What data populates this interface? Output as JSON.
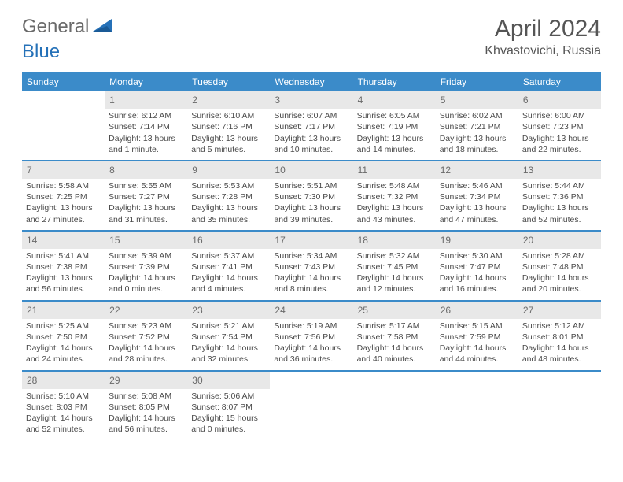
{
  "logo": {
    "text1": "General",
    "text2": "Blue"
  },
  "title": "April 2024",
  "location": "Khvastovichi, Russia",
  "dayNames": [
    "Sunday",
    "Monday",
    "Tuesday",
    "Wednesday",
    "Thursday",
    "Friday",
    "Saturday"
  ],
  "colors": {
    "headerBg": "#3b8bc9",
    "headerText": "#ffffff",
    "cellHeadBg": "#e8e8e8",
    "cellText": "#4a4a4a",
    "logoBlue": "#2571b8",
    "logoGray": "#6a6a6a"
  },
  "weeks": [
    [
      {
        "day": "",
        "sunrise": "",
        "sunset": "",
        "daylight": ""
      },
      {
        "day": "1",
        "sunrise": "Sunrise: 6:12 AM",
        "sunset": "Sunset: 7:14 PM",
        "daylight": "Daylight: 13 hours and 1 minute."
      },
      {
        "day": "2",
        "sunrise": "Sunrise: 6:10 AM",
        "sunset": "Sunset: 7:16 PM",
        "daylight": "Daylight: 13 hours and 5 minutes."
      },
      {
        "day": "3",
        "sunrise": "Sunrise: 6:07 AM",
        "sunset": "Sunset: 7:17 PM",
        "daylight": "Daylight: 13 hours and 10 minutes."
      },
      {
        "day": "4",
        "sunrise": "Sunrise: 6:05 AM",
        "sunset": "Sunset: 7:19 PM",
        "daylight": "Daylight: 13 hours and 14 minutes."
      },
      {
        "day": "5",
        "sunrise": "Sunrise: 6:02 AM",
        "sunset": "Sunset: 7:21 PM",
        "daylight": "Daylight: 13 hours and 18 minutes."
      },
      {
        "day": "6",
        "sunrise": "Sunrise: 6:00 AM",
        "sunset": "Sunset: 7:23 PM",
        "daylight": "Daylight: 13 hours and 22 minutes."
      }
    ],
    [
      {
        "day": "7",
        "sunrise": "Sunrise: 5:58 AM",
        "sunset": "Sunset: 7:25 PM",
        "daylight": "Daylight: 13 hours and 27 minutes."
      },
      {
        "day": "8",
        "sunrise": "Sunrise: 5:55 AM",
        "sunset": "Sunset: 7:27 PM",
        "daylight": "Daylight: 13 hours and 31 minutes."
      },
      {
        "day": "9",
        "sunrise": "Sunrise: 5:53 AM",
        "sunset": "Sunset: 7:28 PM",
        "daylight": "Daylight: 13 hours and 35 minutes."
      },
      {
        "day": "10",
        "sunrise": "Sunrise: 5:51 AM",
        "sunset": "Sunset: 7:30 PM",
        "daylight": "Daylight: 13 hours and 39 minutes."
      },
      {
        "day": "11",
        "sunrise": "Sunrise: 5:48 AM",
        "sunset": "Sunset: 7:32 PM",
        "daylight": "Daylight: 13 hours and 43 minutes."
      },
      {
        "day": "12",
        "sunrise": "Sunrise: 5:46 AM",
        "sunset": "Sunset: 7:34 PM",
        "daylight": "Daylight: 13 hours and 47 minutes."
      },
      {
        "day": "13",
        "sunrise": "Sunrise: 5:44 AM",
        "sunset": "Sunset: 7:36 PM",
        "daylight": "Daylight: 13 hours and 52 minutes."
      }
    ],
    [
      {
        "day": "14",
        "sunrise": "Sunrise: 5:41 AM",
        "sunset": "Sunset: 7:38 PM",
        "daylight": "Daylight: 13 hours and 56 minutes."
      },
      {
        "day": "15",
        "sunrise": "Sunrise: 5:39 AM",
        "sunset": "Sunset: 7:39 PM",
        "daylight": "Daylight: 14 hours and 0 minutes."
      },
      {
        "day": "16",
        "sunrise": "Sunrise: 5:37 AM",
        "sunset": "Sunset: 7:41 PM",
        "daylight": "Daylight: 14 hours and 4 minutes."
      },
      {
        "day": "17",
        "sunrise": "Sunrise: 5:34 AM",
        "sunset": "Sunset: 7:43 PM",
        "daylight": "Daylight: 14 hours and 8 minutes."
      },
      {
        "day": "18",
        "sunrise": "Sunrise: 5:32 AM",
        "sunset": "Sunset: 7:45 PM",
        "daylight": "Daylight: 14 hours and 12 minutes."
      },
      {
        "day": "19",
        "sunrise": "Sunrise: 5:30 AM",
        "sunset": "Sunset: 7:47 PM",
        "daylight": "Daylight: 14 hours and 16 minutes."
      },
      {
        "day": "20",
        "sunrise": "Sunrise: 5:28 AM",
        "sunset": "Sunset: 7:48 PM",
        "daylight": "Daylight: 14 hours and 20 minutes."
      }
    ],
    [
      {
        "day": "21",
        "sunrise": "Sunrise: 5:25 AM",
        "sunset": "Sunset: 7:50 PM",
        "daylight": "Daylight: 14 hours and 24 minutes."
      },
      {
        "day": "22",
        "sunrise": "Sunrise: 5:23 AM",
        "sunset": "Sunset: 7:52 PM",
        "daylight": "Daylight: 14 hours and 28 minutes."
      },
      {
        "day": "23",
        "sunrise": "Sunrise: 5:21 AM",
        "sunset": "Sunset: 7:54 PM",
        "daylight": "Daylight: 14 hours and 32 minutes."
      },
      {
        "day": "24",
        "sunrise": "Sunrise: 5:19 AM",
        "sunset": "Sunset: 7:56 PM",
        "daylight": "Daylight: 14 hours and 36 minutes."
      },
      {
        "day": "25",
        "sunrise": "Sunrise: 5:17 AM",
        "sunset": "Sunset: 7:58 PM",
        "daylight": "Daylight: 14 hours and 40 minutes."
      },
      {
        "day": "26",
        "sunrise": "Sunrise: 5:15 AM",
        "sunset": "Sunset: 7:59 PM",
        "daylight": "Daylight: 14 hours and 44 minutes."
      },
      {
        "day": "27",
        "sunrise": "Sunrise: 5:12 AM",
        "sunset": "Sunset: 8:01 PM",
        "daylight": "Daylight: 14 hours and 48 minutes."
      }
    ],
    [
      {
        "day": "28",
        "sunrise": "Sunrise: 5:10 AM",
        "sunset": "Sunset: 8:03 PM",
        "daylight": "Daylight: 14 hours and 52 minutes."
      },
      {
        "day": "29",
        "sunrise": "Sunrise: 5:08 AM",
        "sunset": "Sunset: 8:05 PM",
        "daylight": "Daylight: 14 hours and 56 minutes."
      },
      {
        "day": "30",
        "sunrise": "Sunrise: 5:06 AM",
        "sunset": "Sunset: 8:07 PM",
        "daylight": "Daylight: 15 hours and 0 minutes."
      },
      {
        "day": "",
        "sunrise": "",
        "sunset": "",
        "daylight": ""
      },
      {
        "day": "",
        "sunrise": "",
        "sunset": "",
        "daylight": ""
      },
      {
        "day": "",
        "sunrise": "",
        "sunset": "",
        "daylight": ""
      },
      {
        "day": "",
        "sunrise": "",
        "sunset": "",
        "daylight": ""
      }
    ]
  ]
}
